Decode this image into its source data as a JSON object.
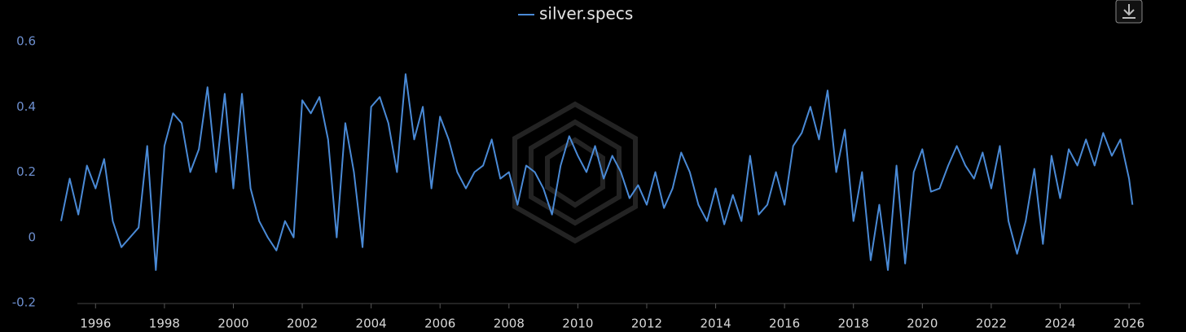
{
  "chart_data": {
    "type": "line",
    "x": [
      1995,
      1995.25,
      1995.5,
      1995.75,
      1996,
      1996.25,
      1996.5,
      1996.75,
      1997,
      1997.25,
      1997.5,
      1997.75,
      1998,
      1998.25,
      1998.5,
      1998.75,
      1999,
      1999.25,
      1999.5,
      1999.75,
      2000,
      2000.25,
      2000.5,
      2000.75,
      2001,
      2001.25,
      2001.5,
      2001.75,
      2002,
      2002.25,
      2002.5,
      2002.75,
      2003,
      2003.25,
      2003.5,
      2003.75,
      2004,
      2004.25,
      2004.5,
      2004.75,
      2005,
      2005.25,
      2005.5,
      2005.75,
      2006,
      2006.25,
      2006.5,
      2006.75,
      2007,
      2007.25,
      2007.5,
      2007.75,
      2008,
      2008.25,
      2008.5,
      2008.75,
      2009,
      2009.25,
      2009.5,
      2009.75,
      2010,
      2010.25,
      2010.5,
      2010.75,
      2011,
      2011.25,
      2011.5,
      2011.75,
      2012,
      2012.25,
      2012.5,
      2012.75,
      2013,
      2013.25,
      2013.5,
      2013.75,
      2014,
      2014.25,
      2014.5,
      2014.75,
      2015,
      2015.25,
      2015.5,
      2015.75,
      2016,
      2016.25,
      2016.5,
      2016.75,
      2017,
      2017.25,
      2017.5,
      2017.75,
      2018,
      2018.25,
      2018.5,
      2018.75,
      2019,
      2019.25,
      2019.5,
      2019.75,
      2020,
      2020.25,
      2020.5,
      2020.75,
      2021,
      2021.25,
      2021.5,
      2021.75,
      2022,
      2022.25,
      2022.5,
      2022.75,
      2023,
      2023.25,
      2023.5,
      2023.75,
      2024,
      2024.25,
      2024.5,
      2024.75,
      2025,
      2025.25,
      2025.5,
      2025.75,
      2026,
      2026.1
    ],
    "series": [
      {
        "name": "silver.specs",
        "color": "#4a8ad6",
        "values": [
          0.05,
          0.18,
          0.07,
          0.22,
          0.15,
          0.24,
          0.05,
          -0.03,
          0.0,
          0.03,
          0.28,
          -0.1,
          0.28,
          0.38,
          0.35,
          0.2,
          0.27,
          0.46,
          0.2,
          0.44,
          0.15,
          0.44,
          0.15,
          0.05,
          0.0,
          -0.04,
          0.05,
          0.0,
          0.42,
          0.38,
          0.43,
          0.3,
          0.0,
          0.35,
          0.2,
          -0.03,
          0.4,
          0.43,
          0.35,
          0.2,
          0.5,
          0.3,
          0.4,
          0.15,
          0.37,
          0.3,
          0.2,
          0.15,
          0.2,
          0.22,
          0.3,
          0.18,
          0.2,
          0.1,
          0.22,
          0.2,
          0.15,
          0.07,
          0.22,
          0.31,
          0.25,
          0.2,
          0.28,
          0.18,
          0.25,
          0.2,
          0.12,
          0.16,
          0.1,
          0.2,
          0.09,
          0.15,
          0.26,
          0.2,
          0.1,
          0.05,
          0.15,
          0.04,
          0.13,
          0.05,
          0.25,
          0.07,
          0.1,
          0.2,
          0.1,
          0.28,
          0.32,
          0.4,
          0.3,
          0.45,
          0.2,
          0.33,
          0.05,
          0.2,
          -0.07,
          0.1,
          -0.1,
          0.22,
          -0.08,
          0.2,
          0.27,
          0.14,
          0.15,
          0.22,
          0.28,
          0.22,
          0.18,
          0.26,
          0.15,
          0.28,
          0.05,
          -0.05,
          0.05,
          0.21,
          -0.02,
          0.25,
          0.12,
          0.27,
          0.22,
          0.3,
          0.22,
          0.32,
          0.25,
          0.3,
          0.18,
          0.1
        ]
      }
    ],
    "xlim": [
      1995,
      2026.4
    ],
    "xticks": [
      1996,
      1998,
      2000,
      2002,
      2004,
      2006,
      2008,
      2010,
      2012,
      2014,
      2016,
      2018,
      2020,
      2022,
      2024,
      2026
    ],
    "ylim": [
      -0.2,
      0.6
    ],
    "yticks": [
      -0.2,
      0,
      0.2,
      0.4,
      0.6
    ]
  }
}
